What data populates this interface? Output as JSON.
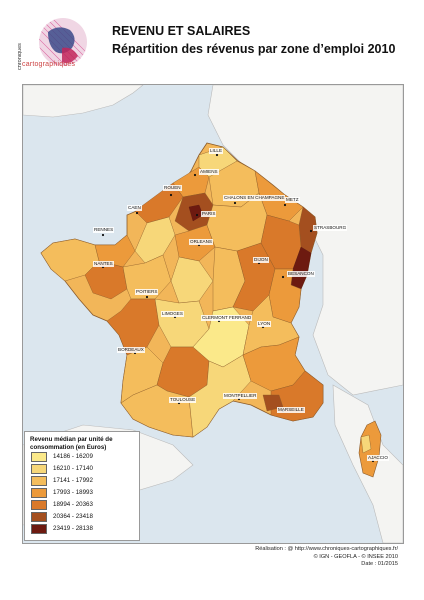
{
  "header": {
    "title": "REVENU ET SALAIRES",
    "subtitle": "Répartition des révenus par zone d’emploi 2010",
    "logo_text": "cartographiques"
  },
  "map": {
    "sea_color": "#dbe6ee",
    "land_outside_color": "#f4f4f2",
    "cities": [
      {
        "name": "LILLE"
      },
      {
        "name": "AMIENS"
      },
      {
        "name": "ROUEN"
      },
      {
        "name": "CAEN"
      },
      {
        "name": "PARIS"
      },
      {
        "name": "CHALONS EN CHAMPAGNE"
      },
      {
        "name": "METZ"
      },
      {
        "name": "STRASBOURG"
      },
      {
        "name": "RENNES"
      },
      {
        "name": "ORLEANS"
      },
      {
        "name": "NANTES"
      },
      {
        "name": "DIJON"
      },
      {
        "name": "BESANCON"
      },
      {
        "name": "POITIERS"
      },
      {
        "name": "LIMOGES"
      },
      {
        "name": "CLERMONT FERRAND"
      },
      {
        "name": "LYON"
      },
      {
        "name": "BORDEAUX"
      },
      {
        "name": "TOULOUSE"
      },
      {
        "name": "MONTPELLIER"
      },
      {
        "name": "MARSEILLE"
      },
      {
        "name": "AJACCIO"
      }
    ]
  },
  "legend": {
    "title": "Revenu médian par unité de consommation (en Euros)",
    "classes": [
      {
        "label": "14186 - 16209",
        "color": "#fbe98a"
      },
      {
        "label": "16210 - 17140",
        "color": "#f7d779"
      },
      {
        "label": "17141 - 17992",
        "color": "#f4bd5c"
      },
      {
        "label": "17993 - 18993",
        "color": "#ec9a3b"
      },
      {
        "label": "18994 - 20363",
        "color": "#d9792a"
      },
      {
        "label": "20364 - 23418",
        "color": "#a44f1f"
      },
      {
        "label": "23419 - 28138",
        "color": "#6d1a10"
      }
    ]
  },
  "credits": {
    "line1": "Réalisation : @ http://www.chroniques-cartographiques.fr/",
    "line2": "© IGN - GEOFLA - © INSEE 2010",
    "line3": "Date : 01/2015"
  }
}
